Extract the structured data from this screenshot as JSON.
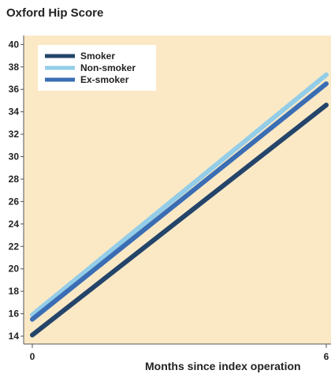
{
  "chart_data": {
    "type": "line",
    "ylabel": "Oxford Hip  Score",
    "xlabel": "Months since index operation",
    "x": [
      0,
      6
    ],
    "xticks": [
      "0",
      "6"
    ],
    "ylim": [
      13.3,
      40.8
    ],
    "yticks": [
      "14",
      "16",
      "18",
      "20",
      "22",
      "24",
      "26",
      "28",
      "30",
      "32",
      "34",
      "36",
      "38",
      "40"
    ],
    "grid": false,
    "legend_position": "top-left",
    "background_color": "#fbe9c6",
    "series": [
      {
        "name": "Smoker",
        "values": [
          14.1,
          34.6
        ],
        "color": "#24446a"
      },
      {
        "name": "Non-smoker",
        "values": [
          15.9,
          37.3
        ],
        "color": "#93cde8"
      },
      {
        "name": "Ex-smoker",
        "values": [
          15.5,
          36.5
        ],
        "color": "#3a6db3"
      }
    ]
  }
}
